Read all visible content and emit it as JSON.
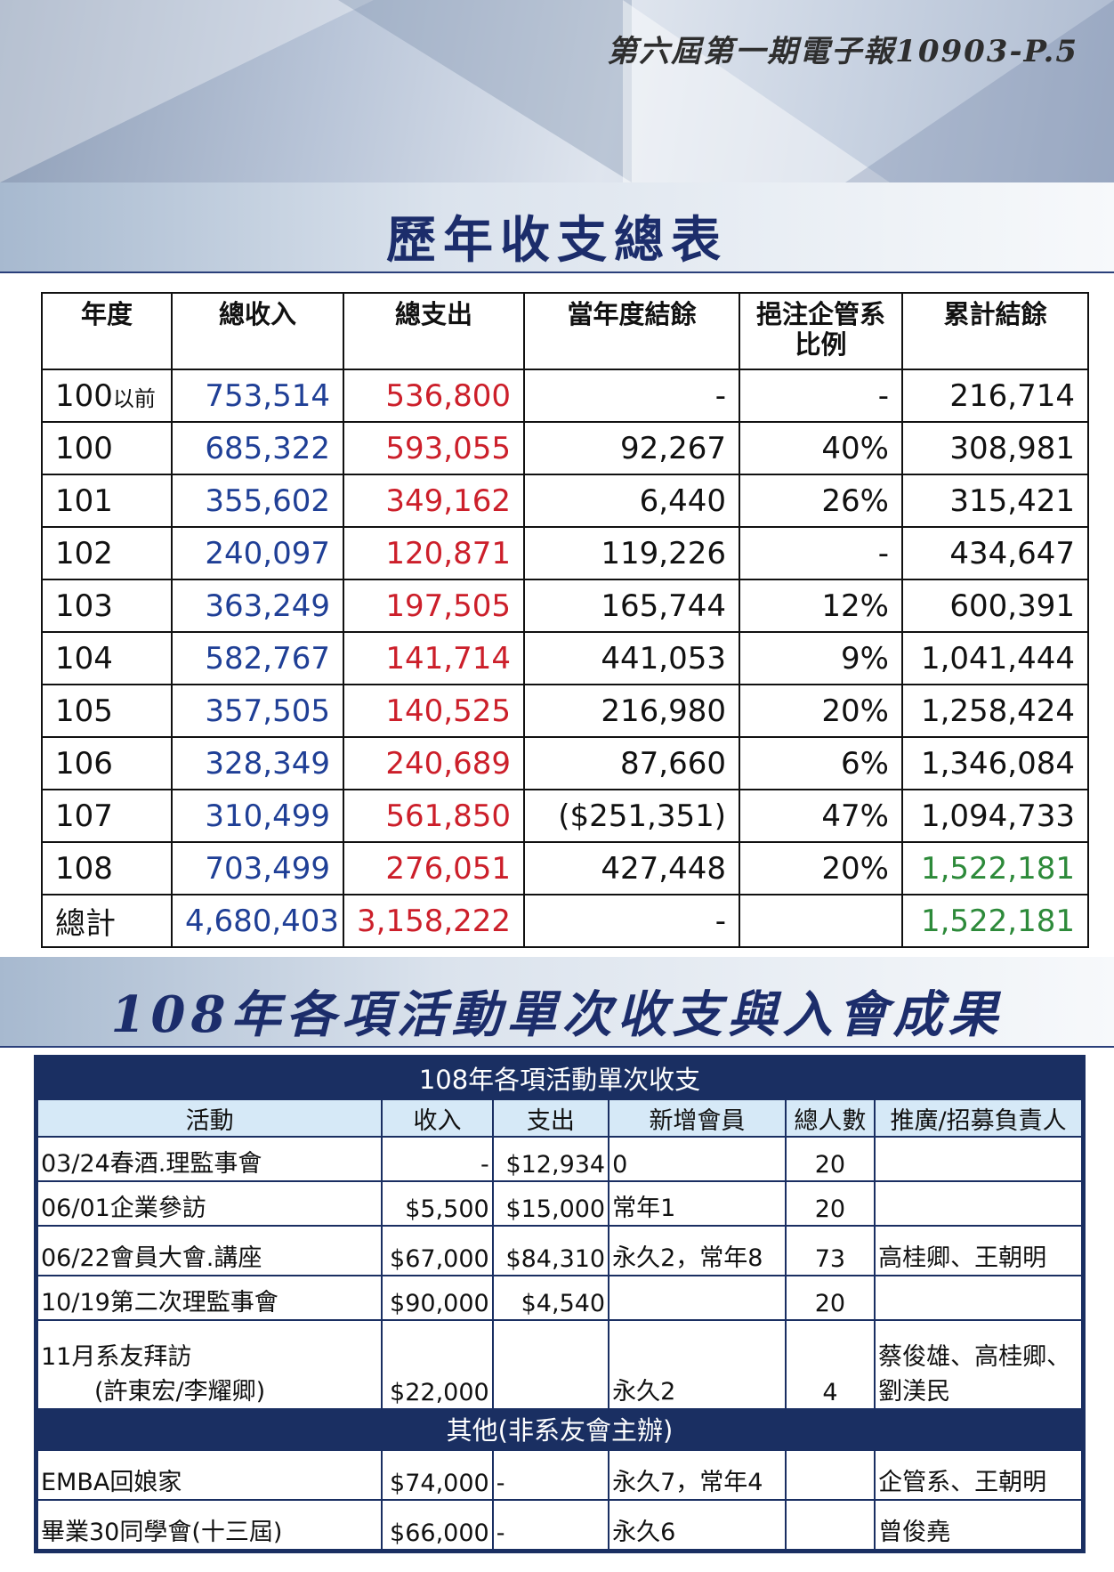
{
  "header": {
    "issue": "第六屆第一期電子報10903-P.5"
  },
  "section1": {
    "title": "歷年收支總表"
  },
  "table1": {
    "headers": [
      "年度",
      "總收入",
      "總支出",
      "當年度結餘",
      "挹注企管系\n比例",
      "累計結餘"
    ],
    "rows": [
      [
        "100",
        "以前",
        "753,514",
        "536,800",
        "-",
        "-",
        "216,714"
      ],
      [
        "100",
        "",
        "685,322",
        "593,055",
        "92,267",
        "40%",
        "308,981"
      ],
      [
        "101",
        "",
        "355,602",
        "349,162",
        "6,440",
        "26%",
        "315,421"
      ],
      [
        "102",
        "",
        "240,097",
        "120,871",
        "119,226",
        "-",
        "434,647"
      ],
      [
        "103",
        "",
        "363,249",
        "197,505",
        "165,744",
        "12%",
        "600,391"
      ],
      [
        "104",
        "",
        "582,767",
        "141,714",
        "441,053",
        "9%",
        "1,041,444"
      ],
      [
        "105",
        "",
        "357,505",
        "140,525",
        "216,980",
        "20%",
        "1,258,424"
      ],
      [
        "106",
        "",
        "328,349",
        "240,689",
        "87,660",
        "6%",
        "1,346,084"
      ],
      [
        "107",
        "",
        "310,499",
        "561,850",
        "($251,351)",
        "47%",
        "1,094,733"
      ],
      [
        "108",
        "",
        "703,499",
        "276,051",
        "427,448",
        "20%",
        "1,522,181"
      ],
      [
        "總計",
        "",
        "4,680,403",
        "3,158,222",
        "-",
        "",
        "1,522,181"
      ]
    ]
  },
  "section2": {
    "title": "108年各項活動單次收支與入會成果"
  },
  "table2": {
    "caption": "108年各項活動單次收支",
    "headers": [
      "活動",
      "收入",
      "支出",
      "新增會員",
      "總人數",
      "推廣/招募負責人"
    ],
    "rows": [
      [
        "03/24春酒.理監事會",
        "",
        "-",
        "$12,934",
        "0",
        "20",
        ""
      ],
      [
        "06/01企業參訪",
        "",
        "$5,500",
        "$15,000",
        "常年1",
        "20",
        ""
      ],
      [
        "06/22會員大會.講座",
        "",
        "$67,000",
        "$84,310",
        "永久2，常年8",
        "73",
        "高桂卿、王朝明"
      ],
      [
        "10/19第二次理監事會",
        "",
        "$90,000",
        "$4,540",
        "",
        "20",
        ""
      ],
      [
        "11月系友拜訪",
        "(許東宏/李耀卿)",
        "$22,000",
        "",
        "永久2",
        "4",
        "蔡俊雄、高桂卿、劉渼民"
      ]
    ],
    "subcaption": "其他(非系友會主辦)",
    "other_rows": [
      [
        "EMBA回娘家",
        "$74,000",
        "-",
        "永久7，常年4",
        "",
        "企管系、王朝明"
      ],
      [
        "畢業30同學會(十三屆)",
        "$66,000",
        "-",
        "永久6",
        "",
        "曾俊堯"
      ]
    ]
  }
}
